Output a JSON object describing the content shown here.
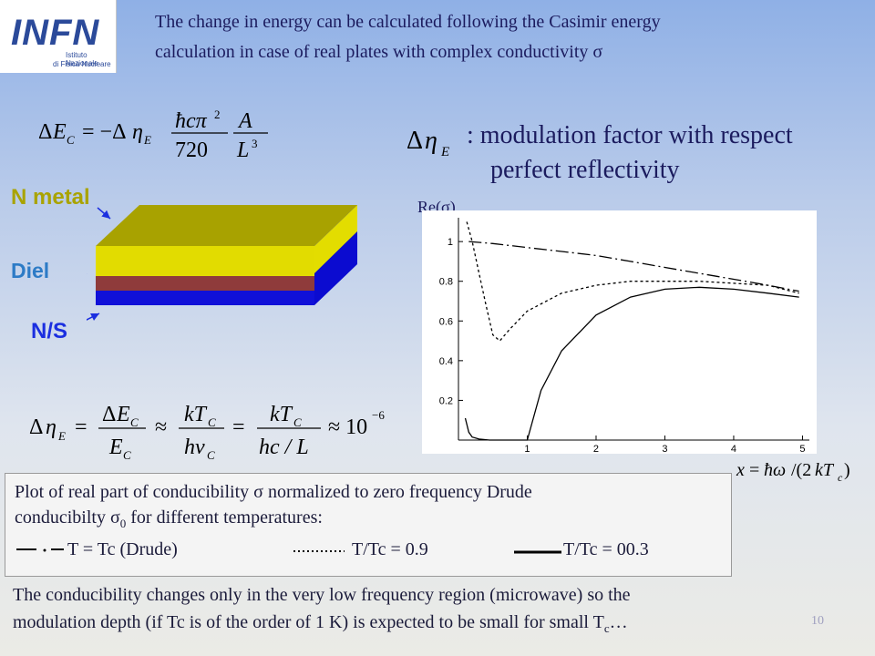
{
  "logo": {
    "mark": "INFN",
    "line1": "Istituto Nazionale",
    "line2": "di Fisica Nucleare"
  },
  "intro": {
    "line1": "The change in energy can be calculated following the Casimir energy",
    "line2": "calculation in case of real plates with complex conductivity σ"
  },
  "modulation": {
    "line1": ": modulation factor with respect",
    "line2": "perfect reflectivity"
  },
  "layers": {
    "n_metal": "N metal",
    "diel": "Diel",
    "ns": "N/S"
  },
  "colors": {
    "n_metal": "#ada700",
    "diel": "#2d7bc6",
    "ns": "#1b2fe0",
    "top_layer": "#dcd700",
    "middle_layer": "#8f3b3b",
    "bottom_layer": "#1010d8"
  },
  "chart_data": {
    "type": "line",
    "ylabel": "Re(σ)",
    "xlabel": "x = ħω/(2kTc)",
    "xlim": [
      0,
      5.1
    ],
    "ylim": [
      0,
      1.12
    ],
    "xticks": [
      "1",
      "2",
      "3",
      "4",
      "5"
    ],
    "yticks": [
      "0.2",
      "0.4",
      "0.6",
      "0.8",
      "1"
    ],
    "series": [
      {
        "name": "T = Tc (Drude)",
        "style": "dashdot",
        "x": [
          0.15,
          0.5,
          1.0,
          1.5,
          2.0,
          2.5,
          3.0,
          3.5,
          4.0,
          4.5,
          4.95
        ],
        "y": [
          1.0,
          0.99,
          0.97,
          0.95,
          0.93,
          0.9,
          0.87,
          0.84,
          0.81,
          0.78,
          0.75
        ]
      },
      {
        "name": "T/Tc = 0.9",
        "style": "dotted",
        "x": [
          0.12,
          0.2,
          0.3,
          0.4,
          0.5,
          0.6,
          0.75,
          1.0,
          1.5,
          2.0,
          2.5,
          3.0,
          3.5,
          4.0,
          4.5,
          4.95
        ],
        "y": [
          1.1,
          1.0,
          0.84,
          0.68,
          0.53,
          0.5,
          0.56,
          0.65,
          0.74,
          0.78,
          0.8,
          0.8,
          0.8,
          0.79,
          0.78,
          0.74
        ]
      },
      {
        "name": "T/Tc = 00.3",
        "style": "solid",
        "x": [
          0.1,
          0.15,
          0.2,
          0.3,
          0.45,
          0.7,
          1.0,
          1.2,
          1.5,
          2.0,
          2.5,
          3.0,
          3.5,
          4.0,
          4.5,
          4.95
        ],
        "y": [
          0.11,
          0.04,
          0.015,
          0.005,
          0.0,
          0.0,
          0.0,
          0.25,
          0.45,
          0.63,
          0.72,
          0.76,
          0.77,
          0.76,
          0.74,
          0.72
        ]
      }
    ]
  },
  "caption": {
    "line1": "Plot of real part of conducibility σ normalized to zero frequency Drude",
    "line2_a": "conducibilty σ",
    "line2_sub": "0",
    "line2_b": " for different temperatures:",
    "legend": [
      "T = Tc (Drude)",
      "T/Tc = 0.9",
      "T/Tc = 00.3"
    ]
  },
  "bottom": {
    "line1": "The conducibility changes only in the very low frequency region (microwave) so the",
    "line2_a": "modulation depth (if Tc is of the order of 1 K) is expected to be small for small T",
    "line2_sub": "c",
    "line2_b": "…"
  },
  "page_number": "10"
}
